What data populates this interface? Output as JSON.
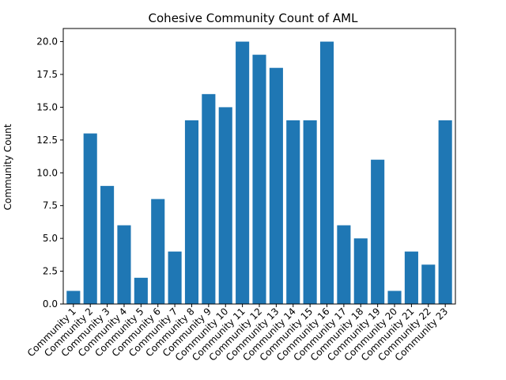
{
  "chart_data": {
    "type": "bar",
    "title": "Cohesive Community Count of AML",
    "xlabel": "",
    "ylabel": "Community Count",
    "categories": [
      "Community 1",
      "Community 2",
      "Community 3",
      "Community 4",
      "Community 5",
      "Community 6",
      "Community 7",
      "Community 8",
      "Community 9",
      "Community 10",
      "Community 11",
      "Community 12",
      "Community 13",
      "Community 14",
      "Community 15",
      "Community 16",
      "Community 17",
      "Community 18",
      "Community 19",
      "Community 20",
      "Community 21",
      "Community 22",
      "Community 23"
    ],
    "values": [
      1,
      13,
      9,
      6,
      2,
      8,
      4,
      14,
      16,
      15,
      20,
      19,
      18,
      14,
      14,
      20,
      6,
      5,
      11,
      1,
      4,
      3,
      14
    ],
    "ylim": [
      0,
      21
    ],
    "yticks": [
      "0.0",
      "2.5",
      "5.0",
      "7.5",
      "10.0",
      "12.5",
      "15.0",
      "17.5",
      "20.0"
    ],
    "bar_color": "#1f77b4",
    "grid": false,
    "legend": "none"
  }
}
